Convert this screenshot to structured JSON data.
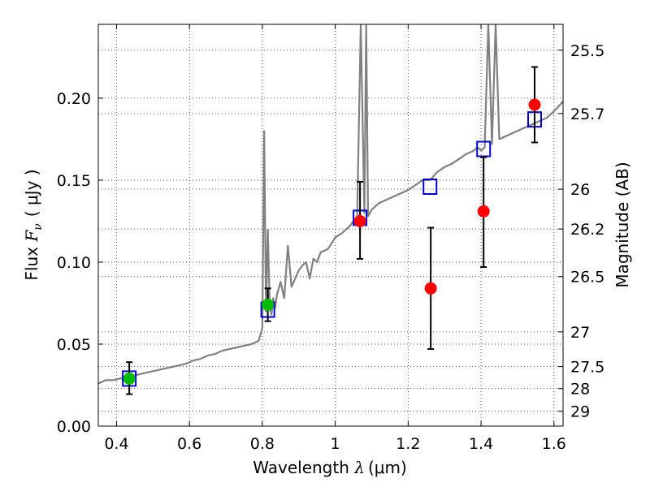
{
  "chart_data": {
    "type": "scatter",
    "xlabel_text": "Wavelength  ",
    "xlabel_symbol": "λ",
    "xlabel_unit": "(μm)",
    "ylabel_text": "Flux  ",
    "ylabel_symbol": "F",
    "ylabel_subscript": "ν",
    "ylabel_unit": "( μJy )",
    "y2label": "Magnitude (AB)",
    "xlim": [
      0.35,
      1.625
    ],
    "ylim": [
      0.0,
      0.245
    ],
    "grid": true,
    "x_ticks": [
      0.4,
      0.6,
      0.8,
      1.0,
      1.2,
      1.4,
      1.6
    ],
    "x_tick_labels": [
      "0.4",
      "0.6",
      "0.8",
      "1",
      "1.2",
      "1.4",
      "1.6"
    ],
    "y_ticks": [
      0.0,
      0.05,
      0.1,
      0.15,
      0.2
    ],
    "y_tick_labels": [
      "0.00",
      "0.05",
      "0.10",
      "0.15",
      "0.20"
    ],
    "y2_ticks": [
      {
        "label": "25.5",
        "flux": 0.2292
      },
      {
        "label": "25.7",
        "flux": 0.1906
      },
      {
        "label": "26",
        "flux": 0.1445
      },
      {
        "label": "26.2",
        "flux": 0.1202
      },
      {
        "label": "26.5",
        "flux": 0.0912
      },
      {
        "label": "27",
        "flux": 0.0575
      },
      {
        "label": "27.5",
        "flux": 0.0363
      },
      {
        "label": "28",
        "flux": 0.0229
      },
      {
        "label": "29",
        "flux": 0.0091
      }
    ],
    "colors": {
      "model": "#808080",
      "photometry": "#ff0000",
      "photometry_alt": "#00bb00",
      "model_flux": "#0000cc",
      "errorbar": "#000000",
      "grid": "#555555"
    },
    "series": [
      {
        "marker": "line",
        "x": [
          0.35,
          0.37,
          0.39,
          0.41,
          0.43,
          0.45,
          0.47,
          0.49,
          0.51,
          0.53,
          0.55,
          0.57,
          0.59,
          0.61,
          0.63,
          0.65,
          0.67,
          0.69,
          0.71,
          0.73,
          0.75,
          0.77,
          0.79,
          0.8,
          0.805,
          0.81,
          0.815,
          0.82,
          0.825,
          0.83,
          0.835,
          0.84,
          0.85,
          0.86,
          0.87,
          0.88,
          0.89,
          0.9,
          0.91,
          0.92,
          0.93,
          0.94,
          0.95,
          0.96,
          0.98,
          1.0,
          1.02,
          1.04,
          1.05,
          1.06,
          1.07,
          1.08,
          1.085,
          1.09,
          1.1,
          1.12,
          1.14,
          1.16,
          1.18,
          1.2,
          1.22,
          1.24,
          1.26,
          1.28,
          1.3,
          1.32,
          1.34,
          1.36,
          1.38,
          1.39,
          1.4,
          1.41,
          1.42,
          1.43,
          1.44,
          1.45,
          1.46,
          1.48,
          1.5,
          1.52,
          1.54,
          1.56,
          1.58,
          1.6,
          1.625
        ],
        "y": [
          0.026,
          0.028,
          0.028,
          0.029,
          0.03,
          0.031,
          0.032,
          0.033,
          0.034,
          0.035,
          0.036,
          0.037,
          0.038,
          0.04,
          0.041,
          0.043,
          0.044,
          0.046,
          0.047,
          0.048,
          0.049,
          0.05,
          0.052,
          0.06,
          0.18,
          0.07,
          0.12,
          0.074,
          0.068,
          0.078,
          0.072,
          0.08,
          0.088,
          0.078,
          0.11,
          0.085,
          0.09,
          0.095,
          0.098,
          0.1,
          0.09,
          0.102,
          0.1,
          0.106,
          0.108,
          0.115,
          0.118,
          0.122,
          0.125,
          0.125,
          0.245,
          0.13,
          0.245,
          0.128,
          0.132,
          0.136,
          0.138,
          0.14,
          0.142,
          0.144,
          0.147,
          0.15,
          0.15,
          0.155,
          0.158,
          0.16,
          0.163,
          0.166,
          0.168,
          0.17,
          0.168,
          0.17,
          0.245,
          0.172,
          0.245,
          0.175,
          0.176,
          0.178,
          0.18,
          0.182,
          0.184,
          0.186,
          0.188,
          0.192,
          0.198
        ]
      },
      {
        "marker": "square",
        "x": [
          0.435,
          0.815,
          1.068,
          1.26,
          1.407,
          1.547
        ],
        "y": [
          0.029,
          0.071,
          0.127,
          0.146,
          0.169,
          0.187
        ]
      },
      {
        "marker": "circle",
        "color_key": "photometry_alt",
        "x": [
          0.435,
          0.815
        ],
        "y": [
          0.029,
          0.074
        ],
        "yerr_low": [
          0.0195,
          0.064
        ],
        "yerr_high": [
          0.039,
          0.084
        ]
      },
      {
        "marker": "circle",
        "color_key": "photometry",
        "x": [
          1.068,
          1.262,
          1.407,
          1.547
        ],
        "y": [
          0.125,
          0.084,
          0.131,
          0.196
        ],
        "yerr_low": [
          0.102,
          0.047,
          0.097,
          0.173
        ],
        "yerr_high": [
          0.149,
          0.121,
          0.164,
          0.219
        ]
      }
    ]
  }
}
